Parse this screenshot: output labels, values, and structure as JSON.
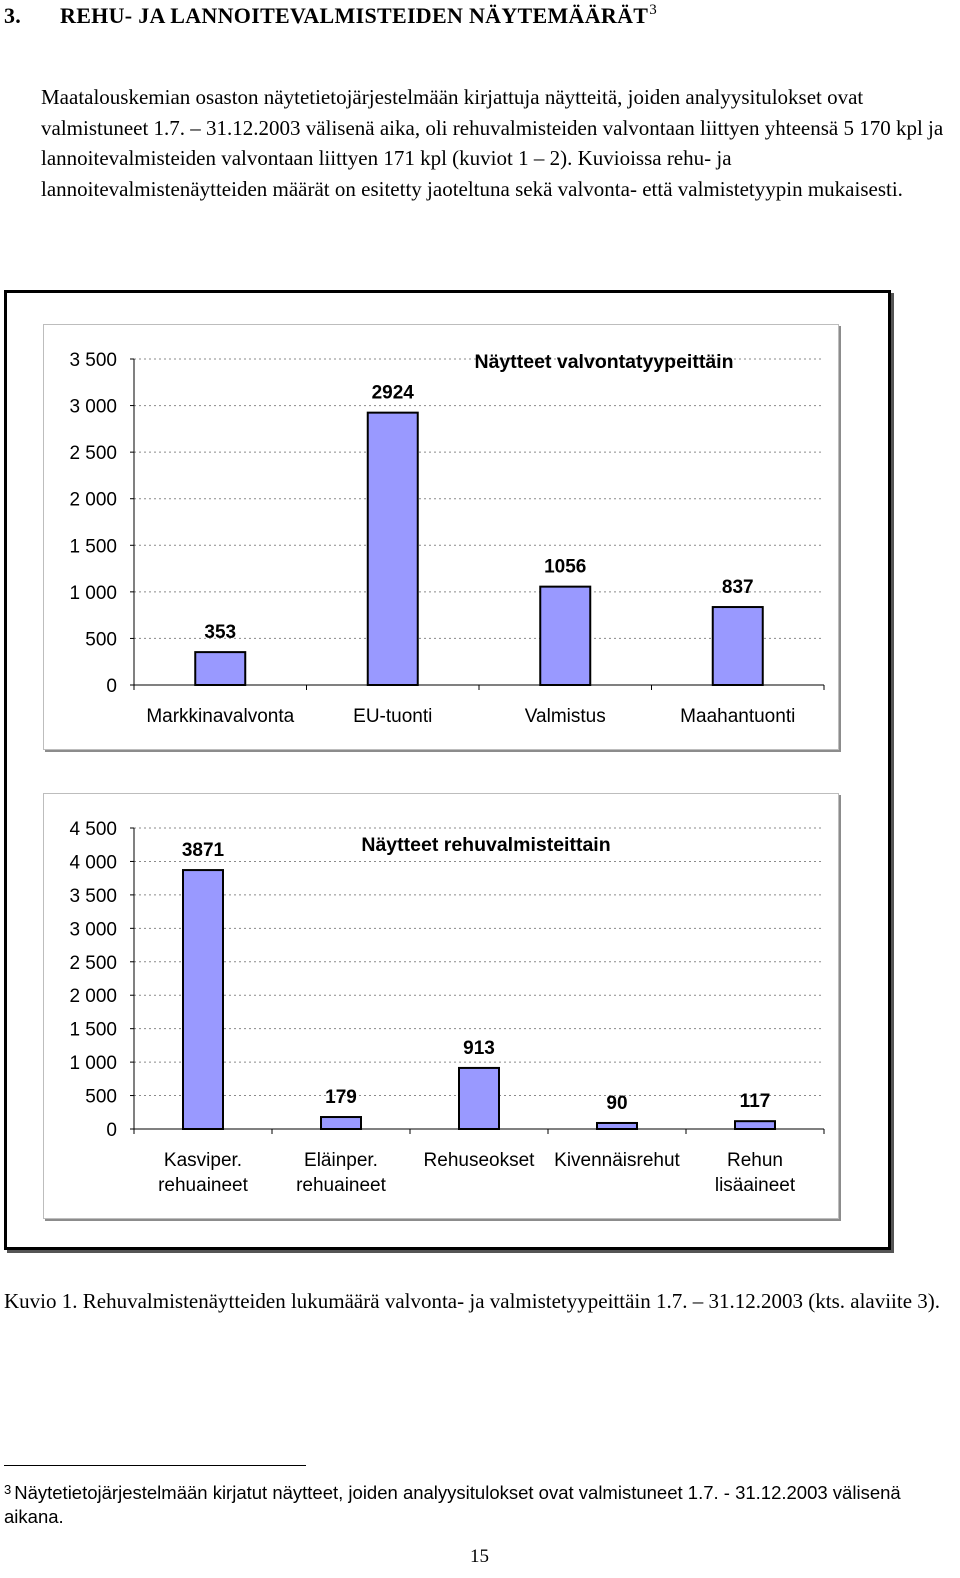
{
  "heading": {
    "number": "3.",
    "title": "REHU- JA LANNOITEVALMISTEIDEN NÄYTEMÄÄRÄT",
    "footnote_ref": "3"
  },
  "intro_paragraph": "Maatalouskemian osaston näytetietojärjestelmään kirjattuja näytteitä, joiden analyysitulokset ovat valmistuneet 1.7. – 31.12.2003 välisenä aika, oli rehuvalmisteiden valvontaan liittyen yhteensä 5 170 kpl ja lannoitevalmisteiden valvontaan liittyen 171 kpl (kuviot 1 – 2). Kuvioissa rehu- ja lannoitevalmistenäytteiden määrät on esitetty jaoteltuna sekä valvonta- että valmistetyypin mukaisesti.",
  "chart_data": [
    {
      "type": "bar",
      "title": "Näytteet valvontatyypeittäin",
      "categories": [
        "Markkinavalvonta",
        "EU-tuonti",
        "Valmistus",
        "Maahantuonti"
      ],
      "values": [
        353,
        2924,
        1056,
        837
      ],
      "data_labels": [
        "353",
        "2924",
        "1056",
        "837"
      ],
      "ylim": [
        0,
        3500
      ],
      "yticks": [
        0,
        500,
        1000,
        1500,
        2000,
        2500,
        3000,
        3500
      ],
      "ytick_labels": [
        "0",
        "500",
        "1 000",
        "1 500",
        "2 000",
        "2 500",
        "3 000",
        "3 500"
      ],
      "xlabel": "",
      "ylabel": "",
      "grid": true,
      "bar_color": "#9999ff",
      "legend": "none"
    },
    {
      "type": "bar",
      "title": "Näytteet rehuvalmisteittain",
      "categories": [
        "Kasviper.\nrehuaineet",
        "Eläinper.\nrehuaineet",
        "Rehuseokset",
        "Kivennäisrehut",
        "Rehun\nlisäaineet"
      ],
      "values": [
        3871,
        179,
        913,
        90,
        117
      ],
      "data_labels": [
        "3871",
        "179",
        "913",
        "90",
        "117"
      ],
      "ylim": [
        0,
        4500
      ],
      "yticks": [
        0,
        500,
        1000,
        1500,
        2000,
        2500,
        3000,
        3500,
        4000,
        4500
      ],
      "ytick_labels": [
        "0",
        "500",
        "1 000",
        "1 500",
        "2 000",
        "2 500",
        "3 000",
        "3 500",
        "4 000",
        "4 500"
      ],
      "xlabel": "",
      "ylabel": "",
      "grid": true,
      "bar_color": "#9999ff",
      "legend": "none"
    }
  ],
  "caption": "Kuvio 1. Rehuvalmistenäytteiden lukumäärä valvonta- ja valmistetyypeittäin 1.7. – 31.12.2003 (kts. alaviite 3).",
  "footnote": {
    "mark": "3",
    "text": "Näytetietojärjestelmään kirjatut näytteet, joiden analyysitulokset ovat valmistuneet 1.7. - 31.12.2003 välisenä aikana."
  },
  "page_number": "15"
}
